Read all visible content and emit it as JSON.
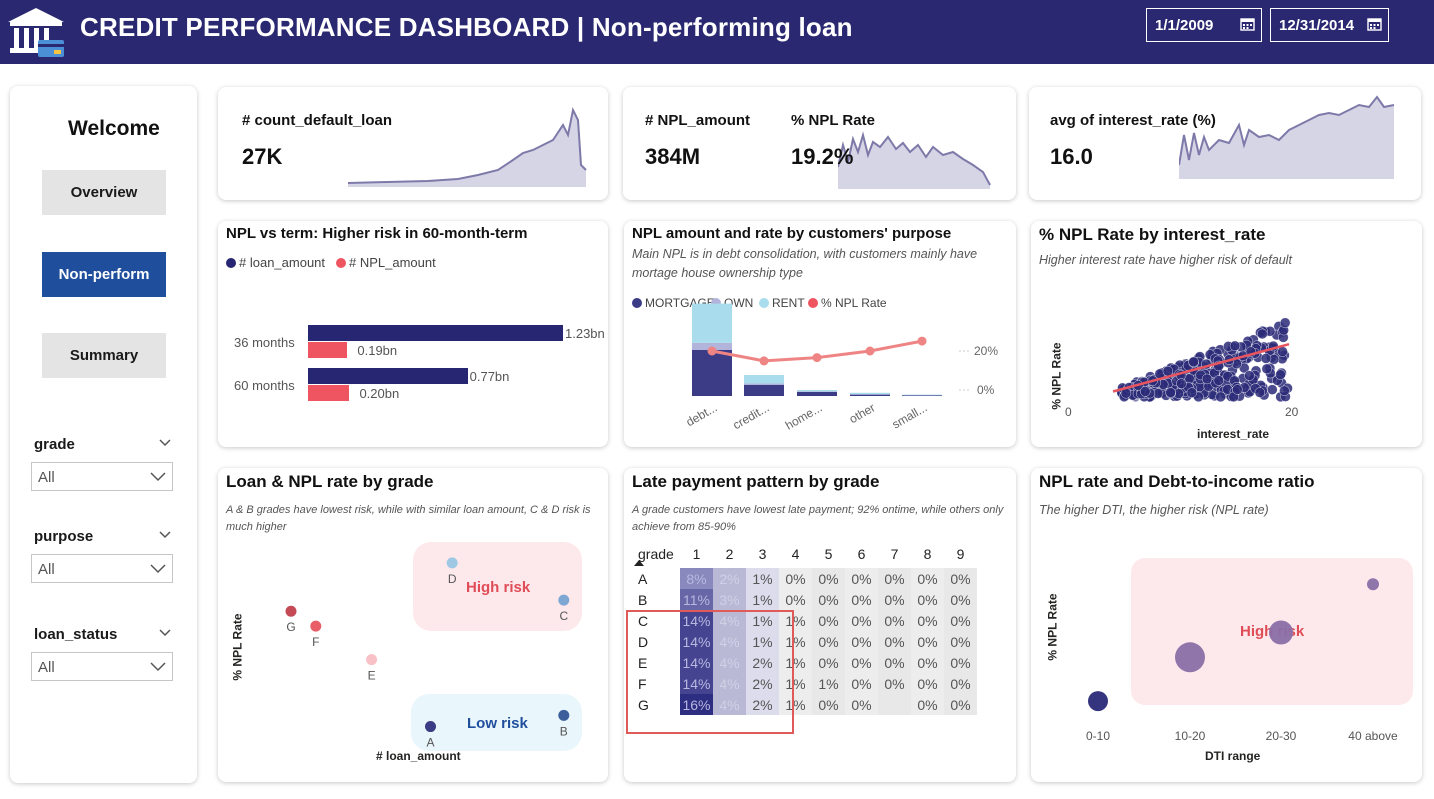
{
  "header": {
    "title": "CREDIT PERFORMANCE DASHBOARD | Non-performing loan",
    "date_start": "1/1/2009",
    "date_end": "12/31/2014"
  },
  "nav": {
    "welcome": "Welcome",
    "buttons": [
      "Overview",
      "Non-perform",
      "Summary"
    ],
    "active": "Non-perform"
  },
  "slicers": [
    {
      "label": "grade",
      "value": "All"
    },
    {
      "label": "purpose",
      "value": "All"
    },
    {
      "label": "loan_status",
      "value": "All"
    }
  ],
  "kpis": {
    "count_default": {
      "label": "# count_default_loan",
      "value": "27K"
    },
    "npl_amount": {
      "label": "# NPL_amount",
      "value": "384M"
    },
    "npl_rate": {
      "label": "% NPL Rate",
      "value": "19.2%"
    },
    "interest": {
      "label": "avg of interest_rate (%)",
      "value": "16.0"
    }
  },
  "colors": {
    "navy": "#2a2870",
    "bar_navy": "#262672",
    "red": "#ef5560",
    "light_blue": "#a9dced",
    "lavender": "#b3b4dc",
    "spark_fill": "#d6d5e6",
    "spark_line": "#7d7aa9"
  },
  "chart_data": [
    {
      "type": "bar",
      "title": "NPL vs term: Higher risk in 60-month-term",
      "categories": [
        "36 months",
        "60 months"
      ],
      "series": [
        {
          "name": "# loan_amount",
          "values": [
            1.23,
            0.77
          ]
        },
        {
          "name": "# NPL_amount",
          "values": [
            0.19,
            0.2
          ]
        }
      ],
      "data_labels": [
        [
          "1.23bn",
          "0.19bn"
        ],
        [
          "0.77bn",
          "0.20bn"
        ]
      ],
      "legend": [
        "# loan_amount",
        "# NPL_amount"
      ],
      "xlim": [
        0,
        1.3
      ]
    },
    {
      "type": "bar",
      "title": "NPL amount and rate by customers' purpose",
      "subtitle": "Main NPL is in debt consolidation, with customers mainly have mortage house ownership type",
      "categories": [
        "debt...",
        "credit...",
        "home...",
        "other",
        "small..."
      ],
      "series": [
        {
          "name": "MORTGAGE",
          "values": [
            33,
            8,
            3,
            1,
            0.5
          ]
        },
        {
          "name": "OWN",
          "values": [
            5,
            1,
            0.3,
            0.3,
            0.1
          ]
        },
        {
          "name": "RENT",
          "values": [
            28,
            6,
            1,
            1,
            0.4
          ]
        },
        {
          "name": "% NPL Rate",
          "values": [
            20,
            17,
            18,
            20,
            23
          ]
        }
      ],
      "legend": [
        "MORTGAGE",
        "OWN",
        "RENT",
        "% NPL Rate"
      ],
      "y2_ticks": [
        "20%",
        "0%"
      ]
    },
    {
      "type": "scatter",
      "title": "% NPL Rate by interest_rate",
      "subtitle": "Higher interest rate have higher risk of default",
      "xlabel": "interest_rate",
      "ylabel": "% NPL Rate",
      "x_ticks": [
        "0",
        "20"
      ],
      "xlim": [
        0,
        30
      ],
      "ylim": [
        0,
        1
      ],
      "trend": [
        [
          5,
          0.05
        ],
        [
          25,
          0.48
        ]
      ]
    },
    {
      "type": "scatter",
      "title": "Loan & NPL rate by grade",
      "subtitle": "A & B grades have lowest risk, while with similar loan amount, C & D risk is much higher",
      "xlabel": "# loan_amount",
      "ylabel": "% NPL Rate",
      "points": [
        {
          "label": "A",
          "x": 0.55,
          "y": 0.04,
          "color": "#3b3b86"
        },
        {
          "label": "B",
          "x": 0.98,
          "y": 0.1,
          "color": "#3a5f9a"
        },
        {
          "label": "C",
          "x": 0.98,
          "y": 0.72,
          "color": "#7fa7d4"
        },
        {
          "label": "D",
          "x": 0.62,
          "y": 0.92,
          "color": "#9ec8e4"
        },
        {
          "label": "E",
          "x": 0.36,
          "y": 0.4,
          "color": "#f7c1c6"
        },
        {
          "label": "F",
          "x": 0.18,
          "y": 0.58,
          "color": "#e85d66"
        },
        {
          "label": "G",
          "x": 0.1,
          "y": 0.66,
          "color": "#c44b55"
        }
      ],
      "annotations": [
        "High risk",
        "Low risk"
      ]
    },
    {
      "type": "table",
      "title": "Late payment pattern by grade",
      "subtitle": "A grade customers have lowest late payment; 92% ontime, while others only achieve from 85-90%",
      "columns": [
        "grade",
        "1",
        "2",
        "3",
        "4",
        "5",
        "6",
        "7",
        "8",
        "9"
      ],
      "rows": [
        [
          "A",
          "8%",
          "2%",
          "1%",
          "0%",
          "0%",
          "0%",
          "0%",
          "0%",
          "0%"
        ],
        [
          "B",
          "11%",
          "3%",
          "1%",
          "0%",
          "0%",
          "0%",
          "0%",
          "0%",
          "0%"
        ],
        [
          "C",
          "14%",
          "4%",
          "1%",
          "1%",
          "0%",
          "0%",
          "0%",
          "0%",
          "0%"
        ],
        [
          "D",
          "14%",
          "4%",
          "1%",
          "1%",
          "0%",
          "0%",
          "0%",
          "0%",
          "0%"
        ],
        [
          "E",
          "14%",
          "4%",
          "2%",
          "1%",
          "0%",
          "0%",
          "0%",
          "0%",
          "0%"
        ],
        [
          "F",
          "14%",
          "4%",
          "2%",
          "1%",
          "1%",
          "0%",
          "0%",
          "0%",
          "0%"
        ],
        [
          "G",
          "16%",
          "4%",
          "2%",
          "1%",
          "0%",
          "0%",
          "",
          "0%",
          "0%"
        ]
      ]
    },
    {
      "type": "scatter",
      "title": "NPL rate and Debt-to-income ratio",
      "subtitle": "The higher DTI, the higher risk (NPL rate)",
      "xlabel": "DTI range",
      "ylabel": "% NPL Rate",
      "categories": [
        "0-10",
        "10-20",
        "20-30",
        "40 above"
      ],
      "values": [
        0.15,
        0.45,
        0.62,
        0.95
      ],
      "annotations": [
        "High risk"
      ]
    }
  ]
}
